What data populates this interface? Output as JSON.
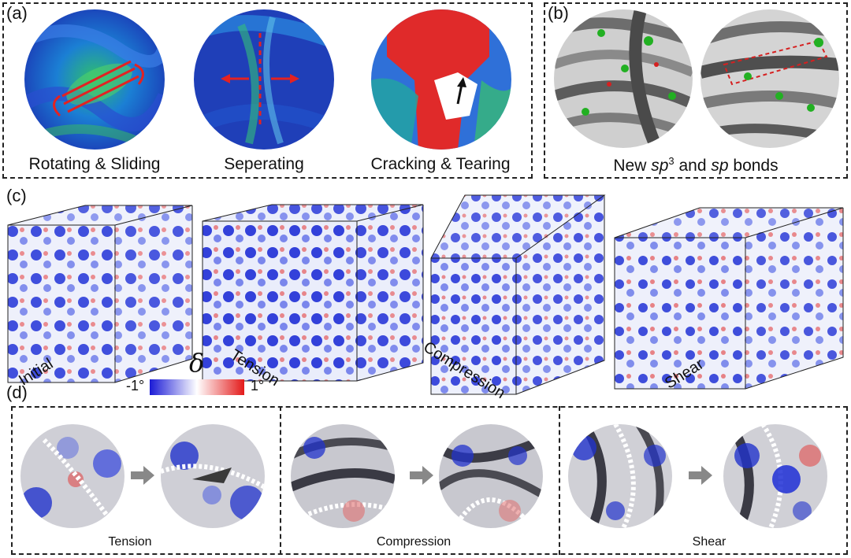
{
  "panel_a": {
    "label": "(a)",
    "captions": [
      "Rotating & Sliding",
      "Seperating",
      "Cracking & Tearing"
    ]
  },
  "panel_b": {
    "label": "(b)",
    "caption_prefix": "New ",
    "caption_sp3": "sp",
    "caption_sup": "3",
    "caption_and": " and ",
    "caption_sp": "sp",
    "caption_suffix": " bonds"
  },
  "panel_c": {
    "label": "(c)",
    "cube_labels": [
      "Initial",
      "Tension",
      "Compression",
      "Shear"
    ],
    "colorbar": {
      "symbol": "δ",
      "min_label": "-1°",
      "max_label": "1°",
      "colors": [
        "#1a1ad6",
        "#ffffff",
        "#e31a1a"
      ]
    }
  },
  "panel_d": {
    "label": "(d)",
    "captions": [
      "Tension",
      "Compression",
      "Shear"
    ]
  }
}
